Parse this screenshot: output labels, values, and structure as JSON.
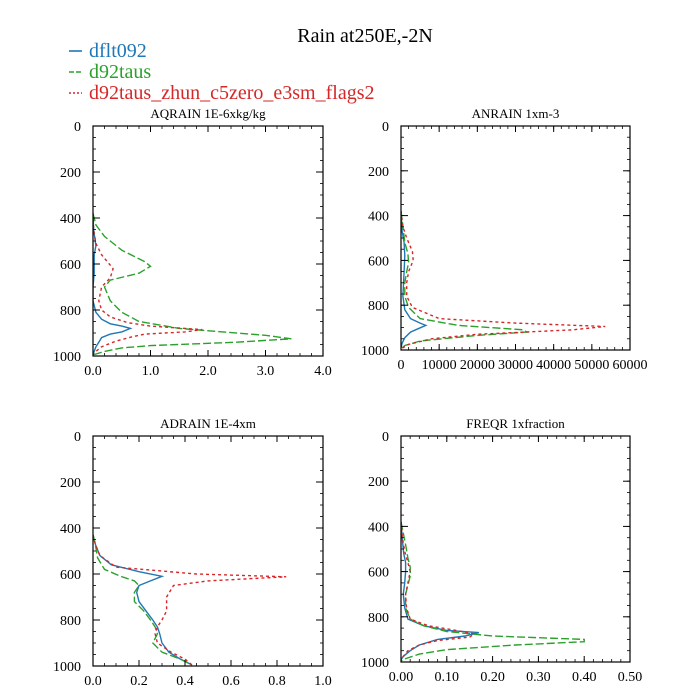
{
  "title": "Rain at250E,-2N",
  "legend": [
    {
      "name": "dflt092",
      "color": "#1f77b4",
      "dash": "solid"
    },
    {
      "name": "d92taus",
      "color": "#2ca02c",
      "dash": "dashed"
    },
    {
      "name": "d92taus_zhun_c5zero_e3sm_flags2",
      "color": "#d62728",
      "dash": "dotted"
    }
  ],
  "chart_data": [
    {
      "type": "line",
      "title": "AQRAIN  1E-6xkg/kg",
      "xlim": [
        0,
        4.0
      ],
      "ylim": [
        1000,
        0
      ],
      "xticks": [
        "0.0",
        "1.0",
        "2.0",
        "3.0",
        "4.0"
      ],
      "xtick_values": [
        0,
        1,
        2,
        3,
        4
      ],
      "yticks": [
        "0",
        "200",
        "400",
        "600",
        "800",
        "1000"
      ],
      "ytick_values": [
        0,
        200,
        400,
        600,
        800,
        1000
      ],
      "xminor": 0.2,
      "series": [
        {
          "name": "dflt092",
          "points": [
            [
              0,
              380
            ],
            [
              0.01,
              450
            ],
            [
              0.05,
              520
            ],
            [
              0.02,
              560
            ],
            [
              0.02,
              600
            ],
            [
              0.02,
              640
            ],
            [
              0,
              700
            ],
            [
              0,
              760
            ],
            [
              0.05,
              810
            ],
            [
              0.15,
              840
            ],
            [
              0.3,
              860
            ],
            [
              0.5,
              870
            ],
            [
              0.65,
              880
            ],
            [
              0.5,
              895
            ],
            [
              0.3,
              905
            ],
            [
              0.15,
              920
            ],
            [
              0.1,
              940
            ],
            [
              0.05,
              960
            ],
            [
              0.02,
              980
            ],
            [
              0,
              995
            ]
          ]
        },
        {
          "name": "d92taus",
          "points": [
            [
              0,
              380
            ],
            [
              0.05,
              430
            ],
            [
              0.2,
              480
            ],
            [
              0.5,
              540
            ],
            [
              0.9,
              590
            ],
            [
              1.0,
              610
            ],
            [
              0.8,
              640
            ],
            [
              0.3,
              670
            ],
            [
              0.2,
              700
            ],
            [
              0.3,
              760
            ],
            [
              0.5,
              810
            ],
            [
              0.8,
              850
            ],
            [
              1.5,
              880
            ],
            [
              3.0,
              910
            ],
            [
              3.45,
              925
            ],
            [
              2.5,
              940
            ],
            [
              1.0,
              955
            ],
            [
              0.5,
              965
            ],
            [
              0.2,
              980
            ],
            [
              0,
              995
            ]
          ]
        },
        {
          "name": "d92taus_zhun_c5zero_e3sm_flags2",
          "points": [
            [
              0,
              380
            ],
            [
              0.01,
              450
            ],
            [
              0.05,
              510
            ],
            [
              0.15,
              560
            ],
            [
              0.35,
              620
            ],
            [
              0.3,
              660
            ],
            [
              0.15,
              700
            ],
            [
              0.1,
              760
            ],
            [
              0.15,
              800
            ],
            [
              0.3,
              830
            ],
            [
              0.6,
              855
            ],
            [
              1.0,
              870
            ],
            [
              1.9,
              885
            ],
            [
              1.6,
              895
            ],
            [
              0.9,
              905
            ],
            [
              0.7,
              915
            ],
            [
              0.4,
              935
            ],
            [
              0.15,
              960
            ],
            [
              0.05,
              980
            ],
            [
              0,
              995
            ]
          ]
        }
      ]
    },
    {
      "type": "line",
      "title": "ANRAIN  1xm-3",
      "xlim": [
        0,
        60000
      ],
      "ylim": [
        1000,
        0
      ],
      "xticks": [
        "0",
        "10000",
        "20000",
        "30000",
        "40000",
        "50000",
        "60000"
      ],
      "xtick_values": [
        0,
        10000,
        20000,
        30000,
        40000,
        50000,
        60000
      ],
      "yticks": [
        "0",
        "200",
        "400",
        "600",
        "800",
        "1000"
      ],
      "ytick_values": [
        0,
        200,
        400,
        600,
        800,
        1000
      ],
      "xminor": 2000,
      "series": [
        {
          "name": "dflt092",
          "points": [
            [
              0,
              380
            ],
            [
              300,
              470
            ],
            [
              800,
              520
            ],
            [
              1000,
              580
            ],
            [
              800,
              650
            ],
            [
              500,
              760
            ],
            [
              1000,
              820
            ],
            [
              2500,
              860
            ],
            [
              5000,
              880
            ],
            [
              6500,
              890
            ],
            [
              4500,
              905
            ],
            [
              2500,
              920
            ],
            [
              1000,
              945
            ],
            [
              300,
              970
            ],
            [
              0,
              990
            ]
          ]
        },
        {
          "name": "d92taus",
          "points": [
            [
              0,
              380
            ],
            [
              500,
              450
            ],
            [
              1000,
              520
            ],
            [
              1800,
              570
            ],
            [
              2000,
              610
            ],
            [
              1500,
              650
            ],
            [
              1000,
              700
            ],
            [
              1000,
              760
            ],
            [
              2000,
              810
            ],
            [
              5000,
              860
            ],
            [
              15000,
              890
            ],
            [
              32000,
              910
            ],
            [
              33000,
              920
            ],
            [
              20000,
              935
            ],
            [
              5000,
              960
            ],
            [
              1000,
              980
            ],
            [
              0,
              995
            ]
          ]
        },
        {
          "name": "d92taus_zhun_c5zero_e3sm_flags2",
          "points": [
            [
              0,
              380
            ],
            [
              500,
              450
            ],
            [
              1500,
              500
            ],
            [
              3000,
              560
            ],
            [
              3200,
              600
            ],
            [
              2000,
              650
            ],
            [
              1500,
              700
            ],
            [
              1500,
              760
            ],
            [
              3000,
              810
            ],
            [
              10000,
              860
            ],
            [
              30000,
              880
            ],
            [
              53500,
              895
            ],
            [
              45000,
              910
            ],
            [
              20000,
              930
            ],
            [
              8000,
              950
            ],
            [
              2000,
              975
            ],
            [
              0,
              995
            ]
          ]
        }
      ]
    },
    {
      "type": "line",
      "title": "ADRAIN  1E-4xm",
      "xlim": [
        0,
        1.0
      ],
      "ylim": [
        1000,
        0
      ],
      "xticks": [
        "0.0",
        "0.2",
        "0.4",
        "0.6",
        "0.8",
        "1.0"
      ],
      "xtick_values": [
        0,
        0.2,
        0.4,
        0.6,
        0.8,
        1.0
      ],
      "yticks": [
        "0",
        "200",
        "400",
        "600",
        "800",
        "1000"
      ],
      "ytick_values": [
        0,
        200,
        400,
        600,
        800,
        1000
      ],
      "xminor": 0.05,
      "series": [
        {
          "name": "dflt092",
          "points": [
            [
              0,
              430
            ],
            [
              0.01,
              470
            ],
            [
              0.03,
              520
            ],
            [
              0.08,
              560
            ],
            [
              0.2,
              590
            ],
            [
              0.3,
              610
            ],
            [
              0.25,
              630
            ],
            [
              0.2,
              650
            ],
            [
              0.19,
              680
            ],
            [
              0.2,
              720
            ],
            [
              0.23,
              760
            ],
            [
              0.26,
              800
            ],
            [
              0.28,
              830
            ],
            [
              0.29,
              860
            ],
            [
              0.3,
              900
            ],
            [
              0.33,
              940
            ],
            [
              0.38,
              970
            ],
            [
              0.43,
              995
            ]
          ]
        },
        {
          "name": "d92taus",
          "points": [
            [
              0,
              430
            ],
            [
              0.01,
              470
            ],
            [
              0.02,
              530
            ],
            [
              0.05,
              580
            ],
            [
              0.12,
              610
            ],
            [
              0.18,
              630
            ],
            [
              0.2,
              650
            ],
            [
              0.18,
              680
            ],
            [
              0.18,
              720
            ],
            [
              0.22,
              760
            ],
            [
              0.25,
              800
            ],
            [
              0.27,
              830
            ],
            [
              0.28,
              860
            ],
            [
              0.26,
              900
            ],
            [
              0.3,
              940
            ],
            [
              0.38,
              970
            ],
            [
              0.43,
              995
            ]
          ]
        },
        {
          "name": "d92taus_zhun_c5zero_e3sm_flags2",
          "points": [
            [
              0,
              430
            ],
            [
              0.01,
              470
            ],
            [
              0.03,
              520
            ],
            [
              0.1,
              570
            ],
            [
              0.45,
              600
            ],
            [
              0.84,
              612
            ],
            [
              0.5,
              630
            ],
            [
              0.35,
              650
            ],
            [
              0.32,
              700
            ],
            [
              0.32,
              760
            ],
            [
              0.3,
              800
            ],
            [
              0.28,
              830
            ],
            [
              0.27,
              860
            ],
            [
              0.28,
              900
            ],
            [
              0.34,
              940
            ],
            [
              0.4,
              970
            ],
            [
              0.43,
              995
            ]
          ]
        }
      ]
    },
    {
      "type": "line",
      "title": "FREQR  1xfraction",
      "xlim": [
        0,
        0.5
      ],
      "ylim": [
        1000,
        0
      ],
      "xticks": [
        "0.00",
        "0.10",
        "0.20",
        "0.30",
        "0.40",
        "0.50"
      ],
      "xtick_values": [
        0,
        0.1,
        0.2,
        0.3,
        0.4,
        0.5
      ],
      "yticks": [
        "0",
        "200",
        "400",
        "600",
        "800",
        "1000"
      ],
      "ytick_values": [
        0,
        200,
        400,
        600,
        800,
        1000
      ],
      "xminor": 0.02,
      "series": [
        {
          "name": "dflt092",
          "points": [
            [
              0,
              380
            ],
            [
              0.003,
              460
            ],
            [
              0.006,
              520
            ],
            [
              0.01,
              560
            ],
            [
              0.01,
              600
            ],
            [
              0.008,
              650
            ],
            [
              0.005,
              700
            ],
            [
              0.008,
              760
            ],
            [
              0.015,
              810
            ],
            [
              0.05,
              840
            ],
            [
              0.1,
              860
            ],
            [
              0.17,
              870
            ],
            [
              0.14,
              885
            ],
            [
              0.08,
              900
            ],
            [
              0.04,
              925
            ],
            [
              0.02,
              950
            ],
            [
              0.005,
              975
            ],
            [
              0,
              990
            ]
          ]
        },
        {
          "name": "d92taus",
          "points": [
            [
              0,
              380
            ],
            [
              0.005,
              430
            ],
            [
              0.01,
              480
            ],
            [
              0.015,
              540
            ],
            [
              0.02,
              580
            ],
            [
              0.02,
              620
            ],
            [
              0.015,
              660
            ],
            [
              0.01,
              700
            ],
            [
              0.01,
              760
            ],
            [
              0.02,
              810
            ],
            [
              0.05,
              840
            ],
            [
              0.1,
              865
            ],
            [
              0.2,
              885
            ],
            [
              0.4,
              900
            ],
            [
              0.4,
              910
            ],
            [
              0.25,
              925
            ],
            [
              0.1,
              945
            ],
            [
              0.04,
              965
            ],
            [
              0.01,
              985
            ],
            [
              0,
              995
            ]
          ]
        },
        {
          "name": "d92taus_zhun_c5zero_e3sm_flags2",
          "points": [
            [
              0,
              380
            ],
            [
              0.003,
              450
            ],
            [
              0.008,
              510
            ],
            [
              0.015,
              560
            ],
            [
              0.02,
              600
            ],
            [
              0.015,
              650
            ],
            [
              0.01,
              700
            ],
            [
              0.012,
              760
            ],
            [
              0.02,
              810
            ],
            [
              0.06,
              840
            ],
            [
              0.12,
              860
            ],
            [
              0.16,
              875
            ],
            [
              0.15,
              890
            ],
            [
              0.08,
              905
            ],
            [
              0.04,
              925
            ],
            [
              0.015,
              950
            ],
            [
              0.005,
              975
            ],
            [
              0,
              995
            ]
          ]
        }
      ]
    }
  ]
}
